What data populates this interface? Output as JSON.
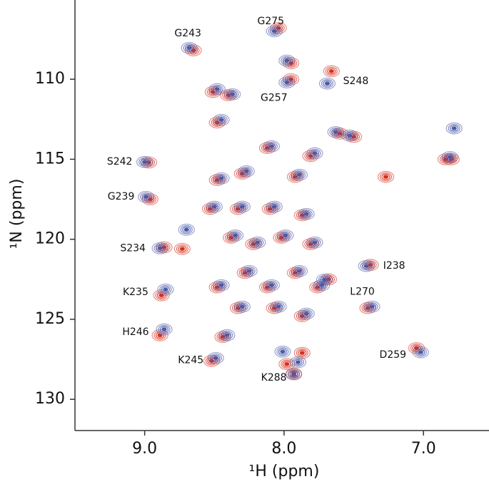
{
  "chart_data": {
    "type": "scatter",
    "xlabel": "¹H (ppm)",
    "ylabel": "¹N (ppm)",
    "xlim": [
      9.5,
      6.53
    ],
    "ylim": [
      105.05,
      131.95
    ],
    "xticks": [
      {
        "value": 9,
        "label": "9.0"
      },
      {
        "value": 8,
        "label": "8.0"
      },
      {
        "value": 7,
        "label": "7.0"
      }
    ],
    "yticks": [
      110,
      115,
      120,
      125,
      130
    ],
    "series": [
      {
        "color": "#d7301f",
        "x": [
          8.65,
          8.04,
          7.66,
          7.95,
          8.97,
          8.96,
          8.86,
          7.38,
          8.88,
          7.68,
          8.89,
          7.05,
          8.52,
          7.93,
          8.51,
          8.4,
          8.48,
          7.95,
          7.6,
          7.5,
          6.8,
          8.12,
          7.81,
          6.84,
          8.48,
          8.3,
          7.92,
          8.53,
          8.33,
          8.1,
          7.87,
          8.38,
          8.22,
          8.02,
          7.81,
          8.48,
          8.28,
          8.12,
          7.92,
          7.76,
          8.33,
          8.07,
          7.87,
          8.73,
          7.4,
          8.44,
          7.87,
          7.98,
          7.27
        ],
        "values": [
          108.2,
          106.8,
          109.5,
          110.0,
          115.2,
          117.5,
          120.5,
          121.6,
          123.5,
          122.5,
          126.0,
          126.8,
          127.6,
          128.4,
          110.8,
          111.0,
          112.7,
          109.0,
          113.4,
          113.6,
          115.0,
          114.3,
          114.8,
          115.0,
          116.3,
          115.9,
          116.1,
          118.1,
          118.1,
          118.1,
          118.5,
          119.9,
          120.3,
          119.9,
          120.3,
          123.0,
          122.1,
          123.0,
          122.1,
          123.0,
          124.3,
          124.3,
          124.8,
          120.6,
          124.3,
          126.1,
          127.1,
          127.8,
          116.1
        ]
      },
      {
        "color": "#4a5aa8",
        "x": [
          8.68,
          8.07,
          7.69,
          7.98,
          9.0,
          8.99,
          8.89,
          7.41,
          8.85,
          7.71,
          8.86,
          7.02,
          8.49,
          7.93,
          8.48,
          8.37,
          8.45,
          7.98,
          7.63,
          7.53,
          6.78,
          8.09,
          7.78,
          6.81,
          8.45,
          8.27,
          7.89,
          8.5,
          8.3,
          8.07,
          7.84,
          8.35,
          8.19,
          7.99,
          7.78,
          8.45,
          8.25,
          8.09,
          7.89,
          7.73,
          8.3,
          8.04,
          7.84,
          8.7,
          7.37,
          8.41,
          7.9,
          8.01
        ],
        "values": [
          108.04,
          107.0,
          110.27,
          110.2,
          115.17,
          117.35,
          120.56,
          121.67,
          123.14,
          122.52,
          125.63,
          127.06,
          127.42,
          128.44,
          110.62,
          110.94,
          112.54,
          108.84,
          113.3,
          113.52,
          113.07,
          114.19,
          114.63,
          114.86,
          116.19,
          115.75,
          115.97,
          117.97,
          117.97,
          117.97,
          118.42,
          119.76,
          120.2,
          119.76,
          120.2,
          122.87,
          121.98,
          122.87,
          121.98,
          122.87,
          124.21,
          124.21,
          124.65,
          119.4,
          124.21,
          125.99,
          127.68,
          127.02
        ]
      }
    ],
    "annotations": [
      {
        "label": "G243",
        "x": 8.68,
        "y": 108.04
      },
      {
        "label": "G275",
        "x": 8.07,
        "y": 107.0
      },
      {
        "label": "S248",
        "x": 7.69,
        "y": 110.27
      },
      {
        "label": "G257",
        "x": 7.98,
        "y": 110.2
      },
      {
        "label": "S242",
        "x": 9.0,
        "y": 115.17
      },
      {
        "label": "G239",
        "x": 8.99,
        "y": 117.35
      },
      {
        "label": "S234",
        "x": 8.89,
        "y": 120.56
      },
      {
        "label": "I238",
        "x": 7.41,
        "y": 121.67
      },
      {
        "label": "K235",
        "x": 8.85,
        "y": 123.14
      },
      {
        "label": "L270",
        "x": 7.71,
        "y": 122.52
      },
      {
        "label": "H246",
        "x": 8.86,
        "y": 125.63
      },
      {
        "label": "D259",
        "x": 7.02,
        "y": 127.06
      },
      {
        "label": "K245",
        "x": 8.49,
        "y": 127.42
      },
      {
        "label": "K288",
        "x": 7.93,
        "y": 128.44
      }
    ]
  }
}
